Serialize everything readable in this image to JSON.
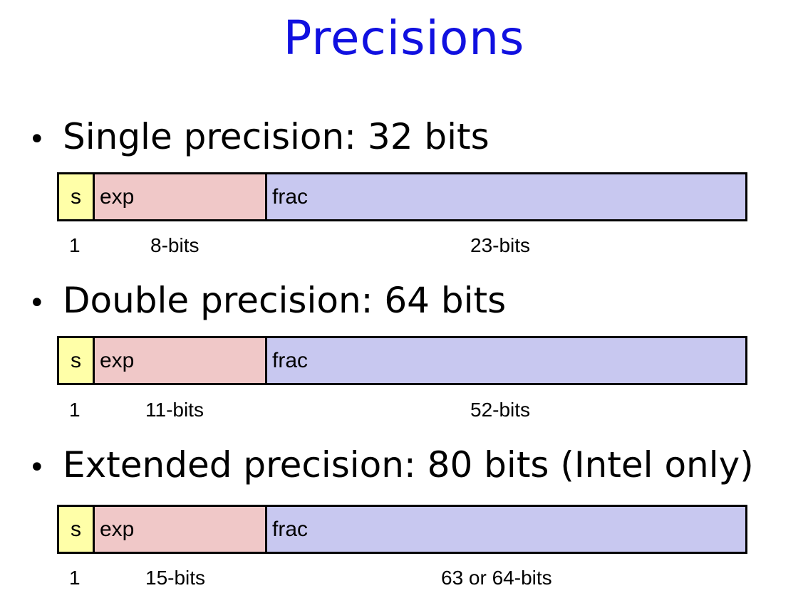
{
  "title": "Precisions",
  "bullet_symbol": "•",
  "formats": [
    {
      "heading": "Single precision: 32 bits",
      "fields": {
        "sign": "s",
        "exp": "exp",
        "frac": "frac"
      },
      "bit_labels": {
        "sign": "1",
        "exp": "8-bits",
        "frac": "23-bits"
      }
    },
    {
      "heading": "Double precision: 64 bits",
      "fields": {
        "sign": "s",
        "exp": "exp",
        "frac": "frac"
      },
      "bit_labels": {
        "sign": "1",
        "exp": "11-bits",
        "frac": "52-bits"
      }
    },
    {
      "heading": "Extended precision: 80 bits (Intel only)",
      "fields": {
        "sign": "s",
        "exp": "exp",
        "frac": "frac"
      },
      "bit_labels": {
        "sign": "1",
        "exp": "15-bits",
        "frac": "63 or 64-bits"
      }
    }
  ],
  "colors": {
    "title": "#1010e0",
    "sign_field": "#ffffa8",
    "exp_field": "#f0c8c8",
    "frac_field": "#c8c8f0"
  }
}
